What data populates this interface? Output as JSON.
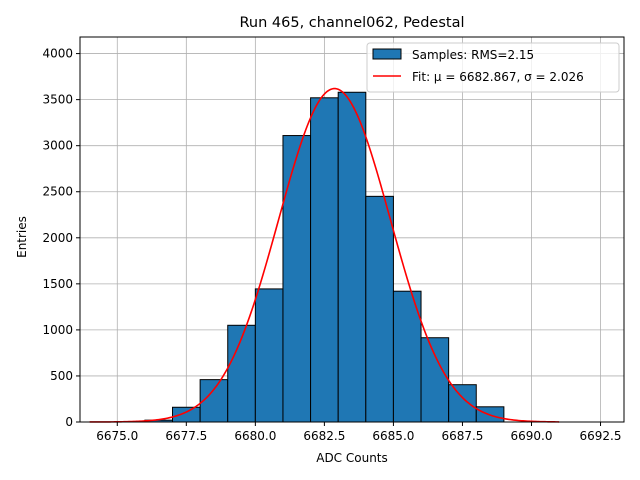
{
  "chart_data": {
    "type": "bar",
    "title": "Run 465, channel062, Pedestal",
    "xlabel": "ADC Counts",
    "ylabel": "Entries",
    "xlim": [
      6673.65,
      6693.35
    ],
    "ylim": [
      0,
      4180
    ],
    "x_ticks": [
      6675.0,
      6677.5,
      6680.0,
      6682.5,
      6685.0,
      6687.5,
      6690.0,
      6692.5
    ],
    "x_tick_labels": [
      "6675.0",
      "6677.5",
      "6680.0",
      "6682.5",
      "6685.0",
      "6687.5",
      "6690.0",
      "6692.5"
    ],
    "y_ticks": [
      0,
      500,
      1000,
      1500,
      2000,
      2500,
      3000,
      3500,
      4000
    ],
    "y_tick_labels": [
      "0",
      "500",
      "1000",
      "1500",
      "2000",
      "2500",
      "3000",
      "3500",
      "4000"
    ],
    "grid": true,
    "legend_position": "top-right",
    "series": [
      {
        "name": "Samples: RMS=2.15",
        "kind": "histogram",
        "color": "#1f77b4",
        "edge_color": "#000000",
        "bins": [
          [
            6676,
            6677,
            20
          ],
          [
            6677,
            6678,
            160
          ],
          [
            6678,
            6679,
            460
          ],
          [
            6679,
            6680,
            1050
          ],
          [
            6680,
            6681,
            1445
          ],
          [
            6681,
            6682,
            3110
          ],
          [
            6682,
            6683,
            3520
          ],
          [
            6683,
            6684,
            3580
          ],
          [
            6684,
            6685,
            2450
          ],
          [
            6685,
            6686,
            1420
          ],
          [
            6686,
            6687,
            915
          ],
          [
            6687,
            6688,
            405
          ],
          [
            6688,
            6689,
            165
          ]
        ]
      },
      {
        "name": "Fit: μ = 6682.867, σ = 2.026",
        "kind": "gaussian-fit",
        "color": "#ff0000",
        "mu": 6682.867,
        "sigma": 2.026,
        "amplitude": 3620,
        "x_range": [
          6674.0,
          6691.0
        ]
      }
    ]
  }
}
